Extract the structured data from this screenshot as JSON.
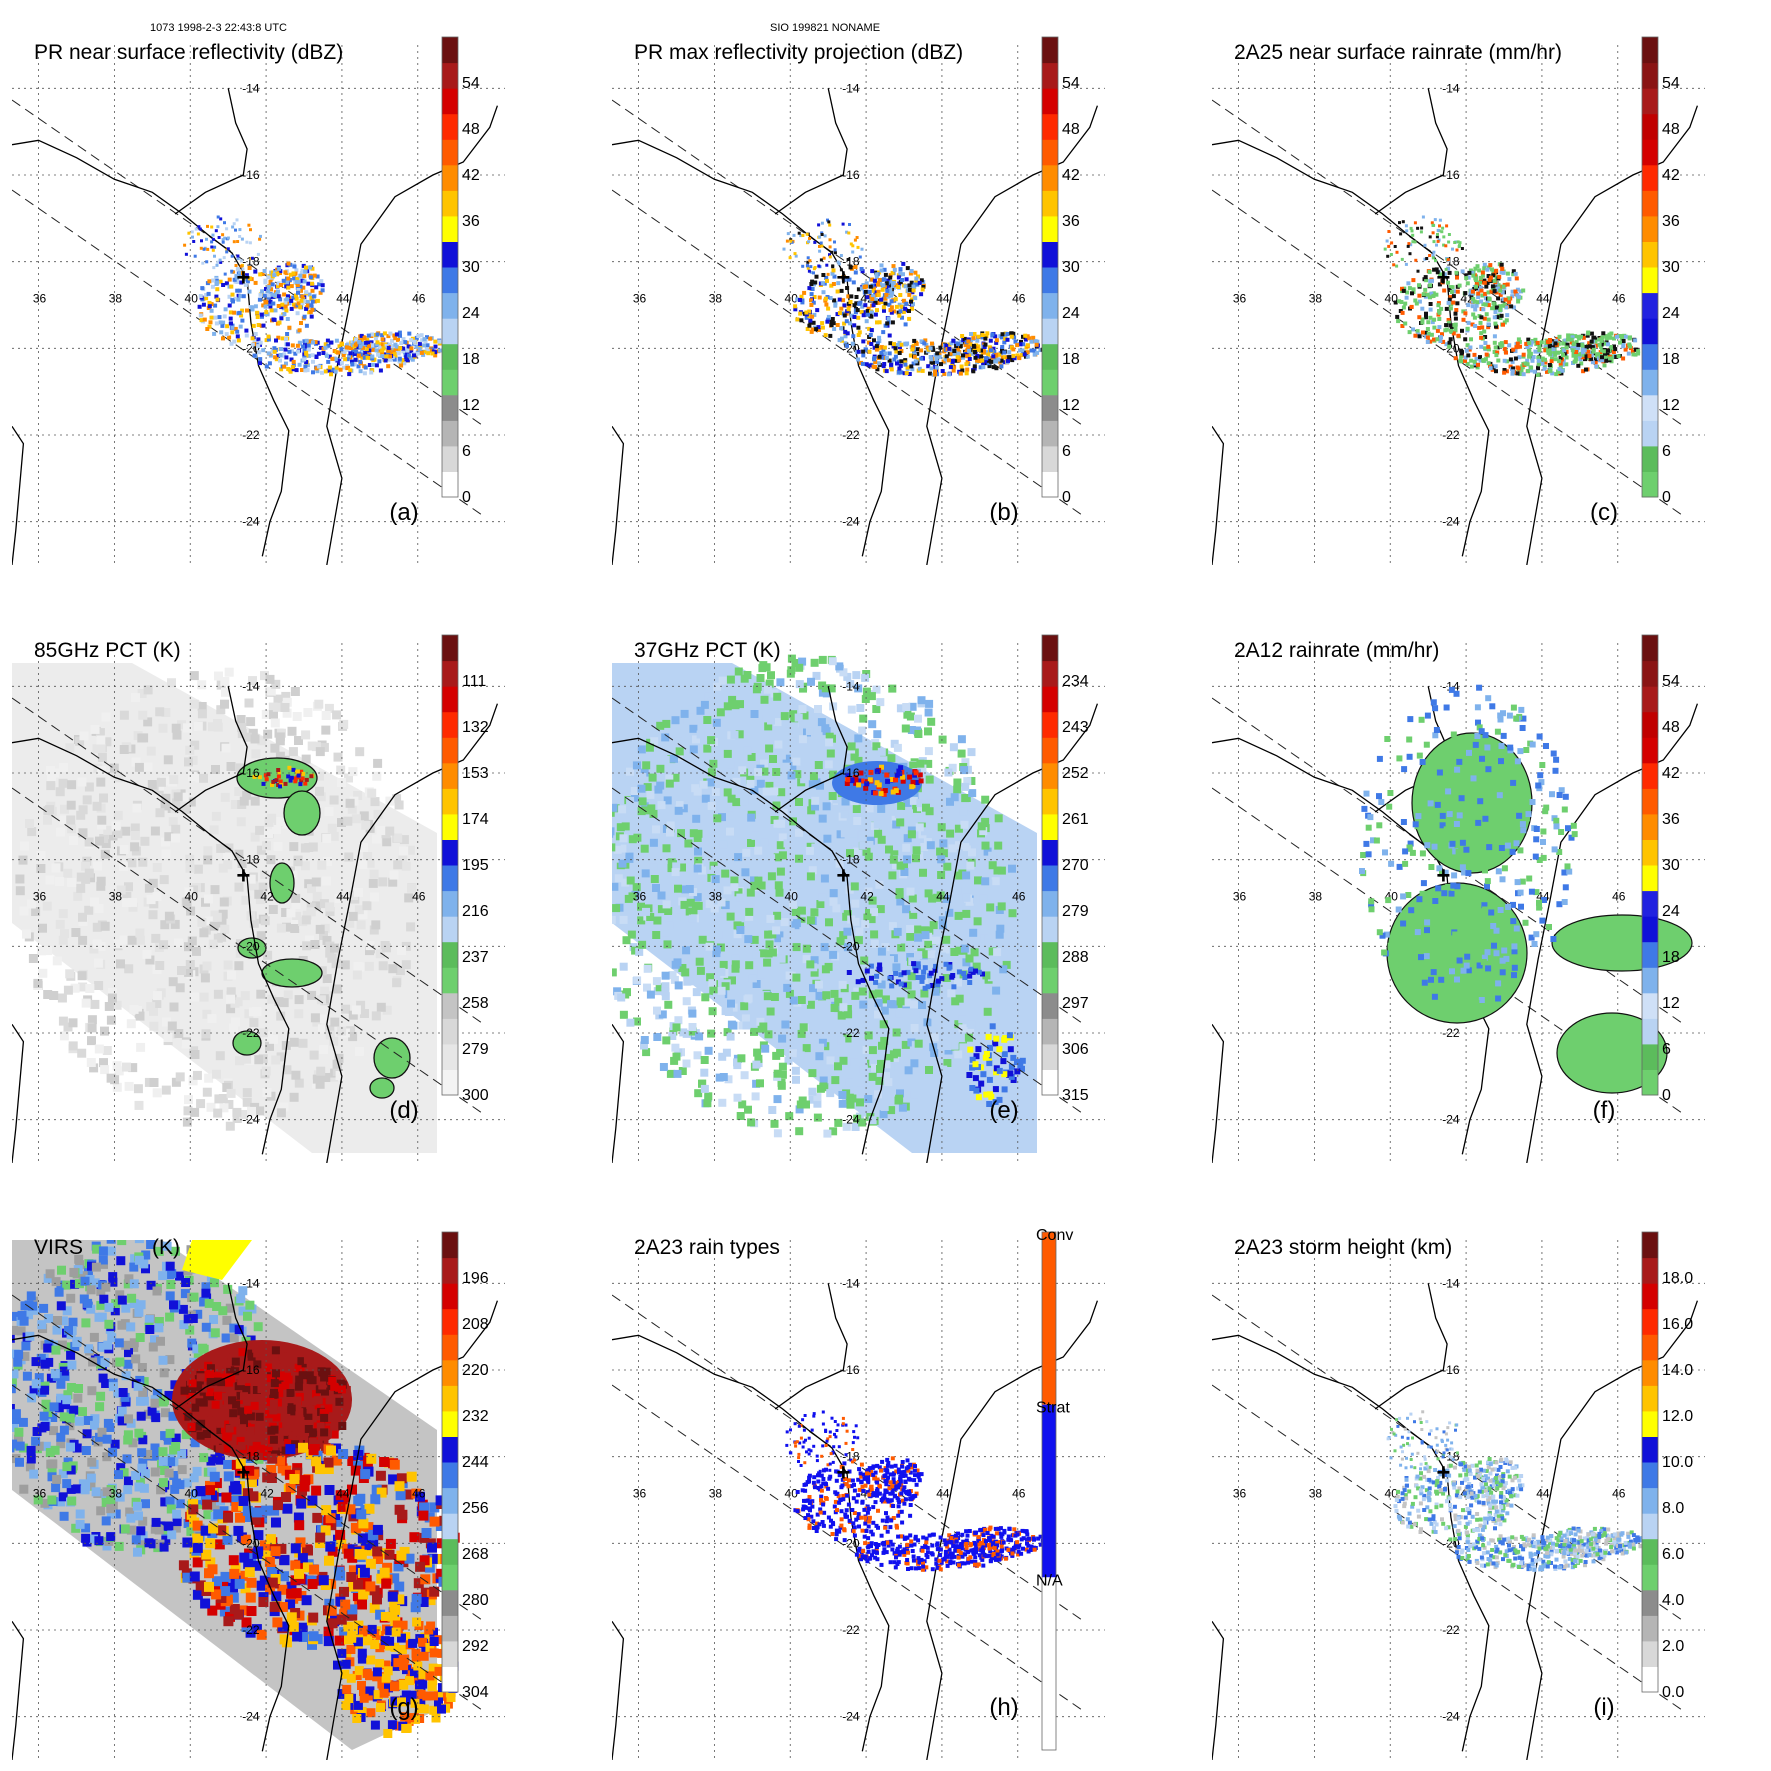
{
  "header": {
    "left": "1073 1998-2-3 22:43:8 UTC",
    "center": "SIO 199821 NONAME"
  },
  "map": {
    "lon_ticks": [
      "36",
      "38",
      "40",
      "42",
      "44",
      "46"
    ],
    "lat_ticks": [
      "-14",
      "-16",
      "-18",
      "-20",
      "-22",
      "-24"
    ],
    "center_marker": "+"
  },
  "colors": {
    "pr_scale": [
      "#ffffff",
      "#d8d8d8",
      "#b5b5b5",
      "#8c8c8c",
      "#6ecf6e",
      "#5cbc5c",
      "#b9d3f3",
      "#7fb2ec",
      "#3f79e6",
      "#1010d8",
      "#ffff00",
      "#ffc400",
      "#ff8c00",
      "#ff5a00",
      "#ff2a00",
      "#d40000",
      "#a81a1a",
      "#6b1010"
    ],
    "gray_scale": [
      "#f4f4f4",
      "#dcdcdc",
      "#c4c4c4",
      "#9e9e9e"
    ],
    "rain_type": [
      "#ffffff",
      "#1010ee",
      "#ff5a00"
    ]
  },
  "chart_data": [
    {
      "type": "heatmap",
      "panel_label": "(a)",
      "title": "PR near surface reflectivity (dBZ)",
      "colorbar": {
        "ticks": [
          "0",
          "6",
          "12",
          "18",
          "24",
          "30",
          "36",
          "42",
          "48",
          "54"
        ]
      }
    },
    {
      "type": "heatmap",
      "panel_label": "(b)",
      "title": "PR max reflectivity projection (dBZ)",
      "colorbar": {
        "ticks": [
          "0",
          "6",
          "12",
          "18",
          "24",
          "30",
          "36",
          "42",
          "48",
          "54"
        ]
      }
    },
    {
      "type": "heatmap",
      "panel_label": "(c)",
      "title": "2A25 near surface rainrate (mm/hr)",
      "colorbar": {
        "ticks": [
          "0",
          "6",
          "12",
          "18",
          "24",
          "30",
          "36",
          "42",
          "48",
          "54"
        ]
      }
    },
    {
      "type": "heatmap",
      "panel_label": "(d)",
      "title": "85GHz PCT (K)",
      "colorbar": {
        "ticks": [
          "300",
          "279",
          "258",
          "237",
          "216",
          "195",
          "174",
          "153",
          "132",
          "111"
        ]
      }
    },
    {
      "type": "heatmap",
      "panel_label": "(e)",
      "title": "37GHz PCT (K)",
      "colorbar": {
        "ticks": [
          "315",
          "306",
          "297",
          "288",
          "279",
          "270",
          "261",
          "252",
          "243",
          "234"
        ]
      }
    },
    {
      "type": "heatmap",
      "panel_label": "(f)",
      "title": "2A12 rainrate (mm/hr)",
      "colorbar": {
        "ticks": [
          "0",
          "6",
          "12",
          "18",
          "24",
          "30",
          "36",
          "42",
          "48",
          "54"
        ]
      }
    },
    {
      "type": "heatmap",
      "panel_label": "(g)",
      "title": "VIRS",
      "title_unit": "(K)",
      "colorbar": {
        "ticks": [
          "304",
          "292",
          "280",
          "268",
          "256",
          "244",
          "232",
          "220",
          "208",
          "196"
        ]
      }
    },
    {
      "type": "heatmap",
      "panel_label": "(h)",
      "title": "2A23 rain types",
      "colorbar": {
        "ticks": [
          "N/A",
          "Strat",
          "Conv"
        ]
      }
    },
    {
      "type": "heatmap",
      "panel_label": "(i)",
      "title": "2A23 storm height (km)",
      "colorbar": {
        "ticks": [
          "0.0",
          "2.0",
          "4.0",
          "6.0",
          "8.0",
          "10.0",
          "12.0",
          "14.0",
          "16.0",
          "18.0"
        ]
      }
    }
  ]
}
